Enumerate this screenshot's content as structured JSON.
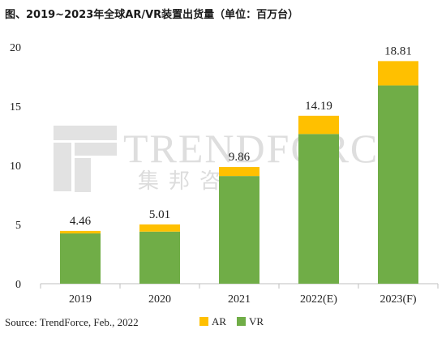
{
  "header": {
    "title": "图、2019~2023年全球AR/VR装置出货量（单位：百万台）"
  },
  "watermark": {
    "brand": "TRENDFORCE",
    "brand_cn": "集邦咨询"
  },
  "source": "Source: TrendForce, Feb., 2022",
  "colors": {
    "AR": "#ffc000",
    "VR": "#70ad47"
  },
  "chart_data": {
    "type": "bar",
    "stacked": true,
    "title": "图、2019~2023年全球AR/VR装置出货量（单位：百万台）",
    "categories": [
      "2019",
      "2020",
      "2021",
      "2022(E)",
      "2023(F)"
    ],
    "series": [
      {
        "name": "VR",
        "values": [
          4.25,
          4.4,
          9.1,
          12.65,
          16.75
        ]
      },
      {
        "name": "AR",
        "values": [
          0.21,
          0.61,
          0.76,
          1.54,
          2.06
        ]
      }
    ],
    "totals": [
      "4.46",
      "5.01",
      "9.86",
      "14.19",
      "18.81"
    ],
    "ylim": [
      0,
      20
    ],
    "yticks": [
      0,
      5,
      10,
      15,
      20
    ],
    "legend": [
      "AR",
      "VR"
    ],
    "legend_position": "bottom-center",
    "grid": false
  }
}
